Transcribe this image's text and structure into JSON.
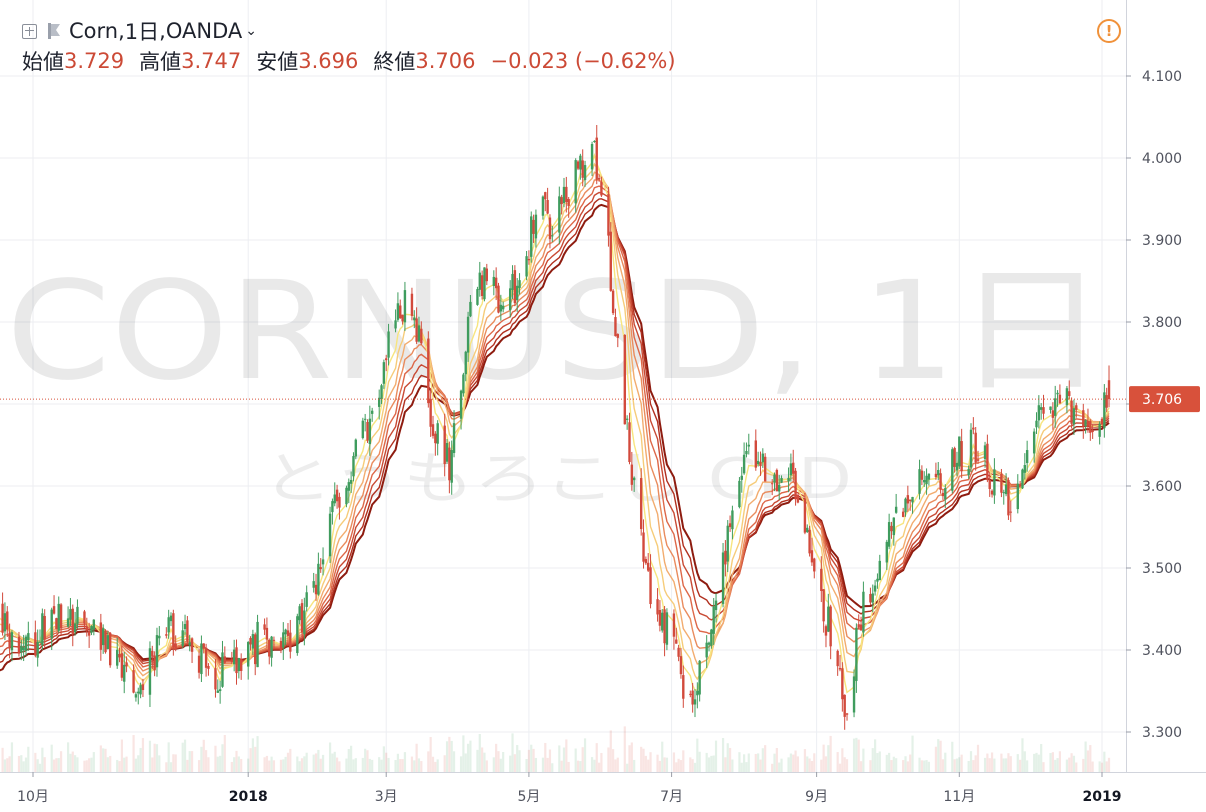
{
  "header": {
    "symbol": "Corn",
    "interval": "1日",
    "exchange": "OANDA",
    "title_sep": ", ",
    "open_label": "始値",
    "open": "3.729",
    "high_label": "高値",
    "high": "3.747",
    "low_label": "安値",
    "low": "3.696",
    "close_label": "終値",
    "close": "3.706",
    "change": "−0.023 (−0.62%)"
  },
  "watermark": {
    "line1": "CORNUSD, 1日",
    "line2": "とうもろこし CFD"
  },
  "colors": {
    "up": "#3f9c5e",
    "down": "#d24a3c",
    "ribbon": [
      "#8e1c10",
      "#b1301f",
      "#c84a34",
      "#dd6748",
      "#e98b5d",
      "#f2ac6f",
      "#f6cc7a",
      "#f7e57f"
    ],
    "grid": "#eceef2",
    "axis_text": "#50535e",
    "price_label_bg": "#d8513b"
  },
  "chart_data": {
    "type": "candlestick",
    "symbol": "CORNUSD",
    "interval": "1日",
    "y_axis_ticks": [
      "4.100",
      "4.000",
      "3.900",
      "3.800",
      "3.700",
      "3.600",
      "3.500",
      "3.400",
      "3.300"
    ],
    "ylim": [
      3.24,
      4.16
    ],
    "x_axis_ticks": [
      {
        "label": "10月",
        "date": "2017-10-01"
      },
      {
        "label": "2018",
        "date": "2018-01-01"
      },
      {
        "label": "3月",
        "date": "2018-03-01"
      },
      {
        "label": "5月",
        "date": "2018-05-01"
      },
      {
        "label": "7月",
        "date": "2018-07-01"
      },
      {
        "label": "9月",
        "date": "2018-09-01"
      },
      {
        "label": "11月",
        "date": "2018-11-01"
      },
      {
        "label": "2019",
        "date": "2019-01-01"
      }
    ],
    "last_price": "3.706",
    "price_path": [
      [
        "2017-09-15",
        3.43
      ],
      [
        "2017-09-25",
        3.41
      ],
      [
        "2017-10-05",
        3.42
      ],
      [
        "2017-10-15",
        3.45
      ],
      [
        "2017-10-25",
        3.43
      ],
      [
        "2017-11-05",
        3.4
      ],
      [
        "2017-11-15",
        3.36
      ],
      [
        "2017-11-25",
        3.41
      ],
      [
        "2017-12-05",
        3.43
      ],
      [
        "2017-12-15",
        3.37
      ],
      [
        "2017-12-25",
        3.38
      ],
      [
        "2018-01-05",
        3.41
      ],
      [
        "2018-01-15",
        3.4
      ],
      [
        "2018-01-25",
        3.44
      ],
      [
        "2018-02-05",
        3.55
      ],
      [
        "2018-02-15",
        3.63
      ],
      [
        "2018-02-25",
        3.71
      ],
      [
        "2018-03-05",
        3.81
      ],
      [
        "2018-03-12",
        3.83
      ],
      [
        "2018-03-20",
        3.69
      ],
      [
        "2018-03-28",
        3.63
      ],
      [
        "2018-04-05",
        3.8
      ],
      [
        "2018-04-12",
        3.86
      ],
      [
        "2018-04-20",
        3.82
      ],
      [
        "2018-04-28",
        3.86
      ],
      [
        "2018-05-05",
        3.94
      ],
      [
        "2018-05-12",
        3.92
      ],
      [
        "2018-05-20",
        3.97
      ],
      [
        "2018-05-27",
        4.02
      ],
      [
        "2018-06-02",
        3.95
      ],
      [
        "2018-06-08",
        3.77
      ],
      [
        "2018-06-14",
        3.62
      ],
      [
        "2018-06-22",
        3.47
      ],
      [
        "2018-06-30",
        3.42
      ],
      [
        "2018-07-08",
        3.33
      ],
      [
        "2018-07-15",
        3.38
      ],
      [
        "2018-07-22",
        3.5
      ],
      [
        "2018-07-31",
        3.63
      ],
      [
        "2018-08-08",
        3.64
      ],
      [
        "2018-08-14",
        3.59
      ],
      [
        "2018-08-22",
        3.62
      ],
      [
        "2018-08-30",
        3.5
      ],
      [
        "2018-09-07",
        3.42
      ],
      [
        "2018-09-14",
        3.33
      ],
      [
        "2018-09-20",
        3.44
      ],
      [
        "2018-09-30",
        3.54
      ],
      [
        "2018-10-08",
        3.57
      ],
      [
        "2018-10-16",
        3.63
      ],
      [
        "2018-10-24",
        3.6
      ],
      [
        "2018-11-01",
        3.64
      ],
      [
        "2018-11-08",
        3.65
      ],
      [
        "2018-11-15",
        3.61
      ],
      [
        "2018-11-22",
        3.58
      ],
      [
        "2018-11-30",
        3.65
      ],
      [
        "2018-12-08",
        3.7
      ],
      [
        "2018-12-16",
        3.72
      ],
      [
        "2018-12-24",
        3.66
      ],
      [
        "2019-01-02",
        3.7
      ],
      [
        "2019-01-04",
        3.71
      ]
    ],
    "moving_average_ribbon_periods": [
      5,
      8,
      11,
      14,
      17,
      20,
      23,
      26
    ]
  }
}
